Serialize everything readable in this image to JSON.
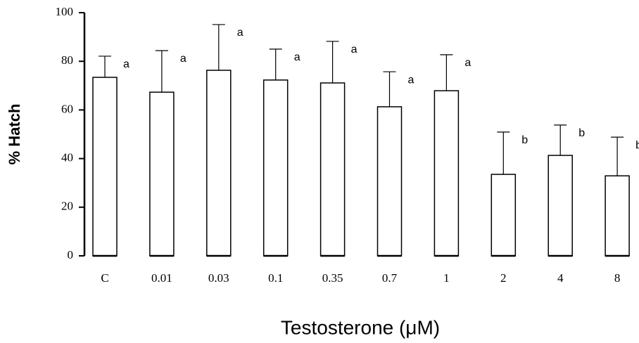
{
  "chart_data": {
    "type": "bar",
    "categories": [
      "C",
      "0.01",
      "0.03",
      "0.1",
      "0.35",
      "0.7",
      "1",
      "2",
      "4",
      "8"
    ],
    "values": [
      73.4,
      67.3,
      76.3,
      72.3,
      71.1,
      61.3,
      67.9,
      33.5,
      41.3,
      32.9
    ],
    "errors": [
      8.7,
      17.1,
      18.8,
      12.7,
      17.1,
      14.4,
      14.8,
      17.4,
      12.5,
      15.9
    ],
    "annotations": [
      "a",
      "a",
      "a",
      "a",
      "a",
      "a",
      "a",
      "b",
      "b",
      "b"
    ],
    "color": "#ffffff",
    "y_label": "% Hatch",
    "x_label": "Testosterone (μM)",
    "ylim": [
      0,
      100
    ],
    "yticks": [
      0,
      20,
      40,
      60,
      80,
      100
    ],
    "grid": false
  }
}
